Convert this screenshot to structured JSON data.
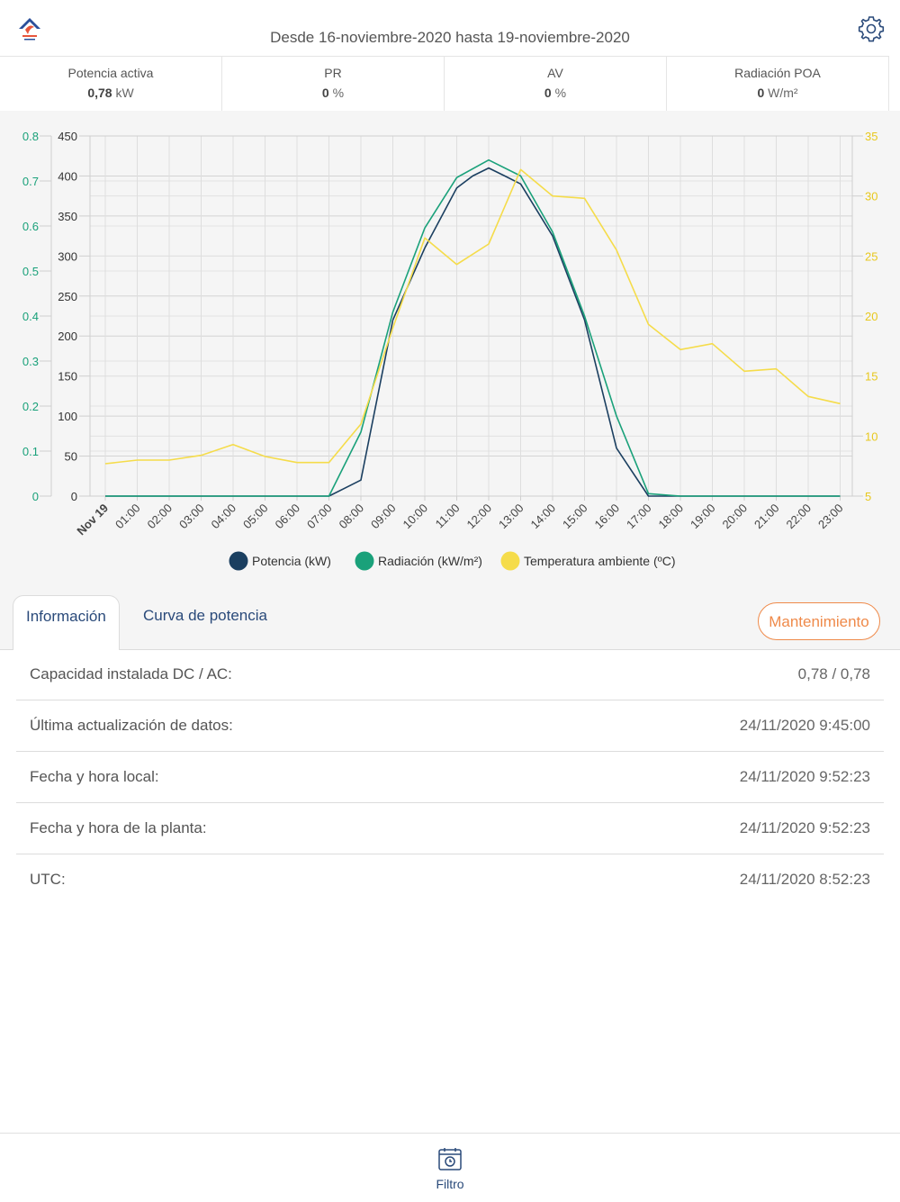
{
  "header": {
    "title": "Desde 16-noviembre-2020 hasta 19-noviembre-2020",
    "logo_icon": "plant-logo-icon",
    "settings_icon": "gear-icon"
  },
  "kpis": [
    {
      "label": "Potencia activa",
      "value": "0,78",
      "unit": "kW"
    },
    {
      "label": "PR",
      "value": "0",
      "unit": "%"
    },
    {
      "label": "AV",
      "value": "0",
      "unit": "%"
    },
    {
      "label": "Radiación POA",
      "value": "0",
      "unit": "W/m²"
    }
  ],
  "chart_data": {
    "type": "line",
    "categories": [
      "Nov 19",
      "01:00",
      "02:00",
      "03:00",
      "04:00",
      "05:00",
      "06:00",
      "07:00",
      "08:00",
      "09:00",
      "10:00",
      "11:00",
      "12:00",
      "13:00",
      "14:00",
      "15:00",
      "16:00",
      "17:00",
      "18:00",
      "19:00",
      "20:00",
      "21:00",
      "22:00",
      "23:00"
    ],
    "y_left_outer": {
      "min": 0,
      "max": 0.8,
      "ticks": [
        "0",
        "0.1",
        "0.2",
        "0.3",
        "0.4",
        "0.5",
        "0.6",
        "0.7",
        "0.8"
      ],
      "color": "#1aa17a"
    },
    "y_left_inner": {
      "min": 0,
      "max": 450,
      "ticks": [
        "0",
        "50",
        "100",
        "150",
        "200",
        "250",
        "300",
        "350",
        "400",
        "450"
      ],
      "color": "#333333"
    },
    "y_right": {
      "min": 5,
      "max": 35,
      "ticks": [
        "5",
        "10",
        "15",
        "20",
        "25",
        "30",
        "35"
      ],
      "color": "#e8c81e"
    },
    "grid": true,
    "legend_position": "bottom",
    "series": [
      {
        "name": "Potencia (kW)",
        "color": "#1b3f60",
        "axis": "inner",
        "x": [
          0,
          1,
          2,
          3,
          4,
          5,
          6,
          7,
          8,
          9,
          10,
          11,
          11.5,
          12,
          12.5,
          13,
          14,
          15,
          16,
          17,
          18,
          19,
          20,
          21,
          22,
          23
        ],
        "values": [
          0,
          0,
          0,
          0,
          0,
          0,
          0,
          0,
          20,
          220,
          310,
          385,
          400,
          410,
          400,
          390,
          325,
          220,
          60,
          0,
          0,
          0,
          0,
          0,
          0,
          0
        ]
      },
      {
        "name": "Radiación (kW/m²)",
        "color": "#1aa17a",
        "axis": "inner",
        "x": [
          0,
          1,
          2,
          3,
          4,
          5,
          6,
          7,
          8,
          9,
          10,
          11,
          12,
          13,
          14,
          15,
          16,
          17,
          18,
          19,
          20,
          21,
          22,
          23
        ],
        "values": [
          0,
          0,
          0,
          0,
          0,
          0,
          0,
          0,
          80,
          230,
          335,
          398,
          420,
          400,
          330,
          225,
          100,
          3,
          0,
          0,
          0,
          0,
          0,
          0
        ]
      },
      {
        "name": "Temperatura ambiente (ºC)",
        "color": "#f5dc4a",
        "axis": "right",
        "x": [
          0,
          1,
          2,
          3,
          4,
          5,
          6,
          7,
          8,
          9,
          10,
          11,
          12,
          13,
          14,
          15,
          16,
          17,
          18,
          19,
          20,
          21,
          22,
          23
        ],
        "values": [
          7.7,
          8.0,
          8.0,
          8.4,
          9.3,
          8.3,
          7.8,
          7.8,
          11.0,
          19.0,
          26.5,
          24.3,
          26.0,
          32.2,
          30.0,
          29.8,
          25.5,
          19.3,
          17.2,
          17.7,
          15.4,
          15.6,
          13.3,
          12.7
        ]
      }
    ]
  },
  "tabs": {
    "info": "Información",
    "curve": "Curva de potencia",
    "maintenance": "Mantenimiento"
  },
  "info_rows": [
    {
      "label": "Capacidad instalada DC / AC:",
      "value": "0,78 / 0,78"
    },
    {
      "label": "Última actualización de datos:",
      "value": "24/11/2020 9:45:00"
    },
    {
      "label": "Fecha y hora local:",
      "value": "24/11/2020 9:52:23"
    },
    {
      "label": "Fecha y hora de la planta:",
      "value": "24/11/2020 9:52:23"
    },
    {
      "label": "UTC:",
      "value": "24/11/2020 8:52:23"
    }
  ],
  "bottom_bar": {
    "filter_label": "Filtro",
    "filter_icon": "calendar-clock-icon"
  }
}
